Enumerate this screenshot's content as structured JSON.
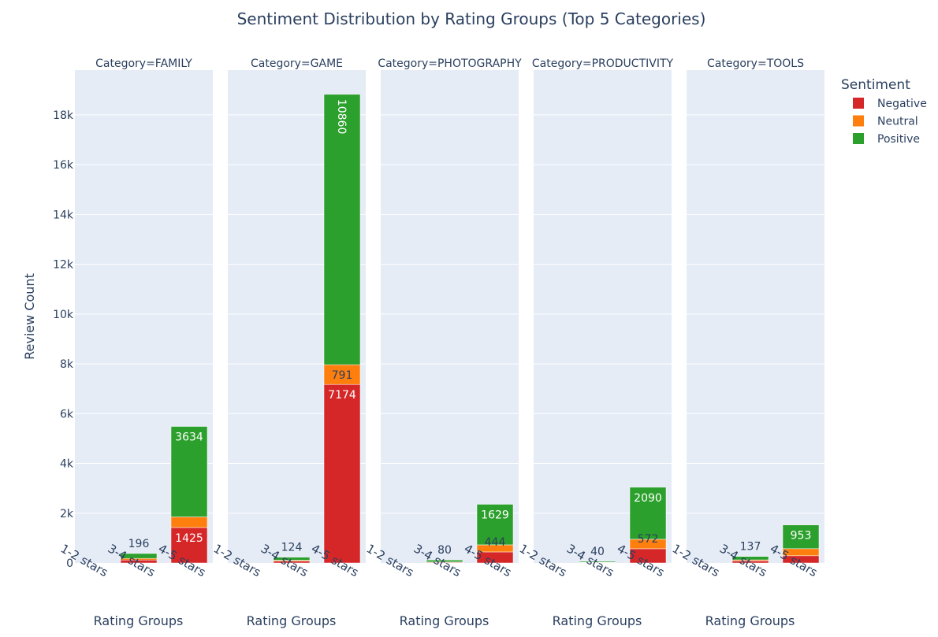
{
  "chart_data": {
    "type": "bar",
    "stacked": true,
    "title": "Sentiment Distribution by Rating Groups (Top 5 Categories)",
    "ylabel": "Review Count",
    "xlabel": "Rating Groups",
    "ylim": [
      0,
      19800
    ],
    "yticks": [
      0,
      2000,
      4000,
      6000,
      8000,
      10000,
      12000,
      14000,
      16000,
      18000
    ],
    "ytick_labels": [
      "0",
      "2k",
      "4k",
      "6k",
      "8k",
      "10k",
      "12k",
      "14k",
      "16k",
      "18k"
    ],
    "categories": [
      "1-2 stars",
      "3-4 stars",
      "4-5 stars"
    ],
    "legend": {
      "title": "Sentiment",
      "placement": "top-right",
      "items": [
        "Negative",
        "Neutral",
        "Positive"
      ]
    },
    "colors": {
      "Negative": "#d62728",
      "Neutral": "#ff7f0e",
      "Positive": "#2ca02c",
      "plot_background": "#e5ecf6",
      "text": "#2a3f5f"
    },
    "panels": [
      {
        "label": "Category=FAMILY",
        "series": [
          {
            "name": "Negative",
            "values": [
              0,
              120,
              1425
            ],
            "labels": [
              "",
              "",
              "1425"
            ]
          },
          {
            "name": "Neutral",
            "values": [
              0,
              65,
              426
            ],
            "labels": [
              "",
              "",
              ""
            ]
          },
          {
            "name": "Positive",
            "values": [
              0,
              196,
              3634
            ],
            "labels": [
              "",
              "196",
              "3634"
            ]
          }
        ]
      },
      {
        "label": "Category=GAME",
        "series": [
          {
            "name": "Negative",
            "values": [
              0,
              75,
              7174
            ],
            "labels": [
              "",
              "",
              "7174"
            ]
          },
          {
            "name": "Neutral",
            "values": [
              0,
              35,
              791
            ],
            "labels": [
              "",
              "",
              "791"
            ]
          },
          {
            "name": "Positive",
            "values": [
              0,
              124,
              10860
            ],
            "labels": [
              "",
              "124",
              "10860"
            ]
          }
        ]
      },
      {
        "label": "Category=PHOTOGRAPHY",
        "series": [
          {
            "name": "Negative",
            "values": [
              0,
              25,
              444
            ],
            "labels": [
              "",
              "",
              "444"
            ]
          },
          {
            "name": "Neutral",
            "values": [
              0,
              15,
              285
            ],
            "labels": [
              "",
              "",
              ""
            ]
          },
          {
            "name": "Positive",
            "values": [
              0,
              80,
              1629
            ],
            "labels": [
              "",
              "80",
              "1629"
            ]
          }
        ]
      },
      {
        "label": "Category=PRODUCTIVITY",
        "series": [
          {
            "name": "Negative",
            "values": [
              0,
              15,
              572
            ],
            "labels": [
              "",
              "",
              "572"
            ]
          },
          {
            "name": "Neutral",
            "values": [
              0,
              8,
              380
            ],
            "labels": [
              "",
              "",
              ""
            ]
          },
          {
            "name": "Positive",
            "values": [
              0,
              40,
              2090
            ],
            "labels": [
              "",
              "40",
              "2090"
            ]
          }
        ]
      },
      {
        "label": "Category=TOOLS",
        "series": [
          {
            "name": "Negative",
            "values": [
              0,
              85,
              290
            ],
            "labels": [
              "",
              "",
              ""
            ]
          },
          {
            "name": "Neutral",
            "values": [
              0,
              40,
              285
            ],
            "labels": [
              "",
              "",
              ""
            ]
          },
          {
            "name": "Positive",
            "values": [
              0,
              137,
              953
            ],
            "labels": [
              "",
              "137",
              "953"
            ]
          }
        ]
      }
    ]
  }
}
